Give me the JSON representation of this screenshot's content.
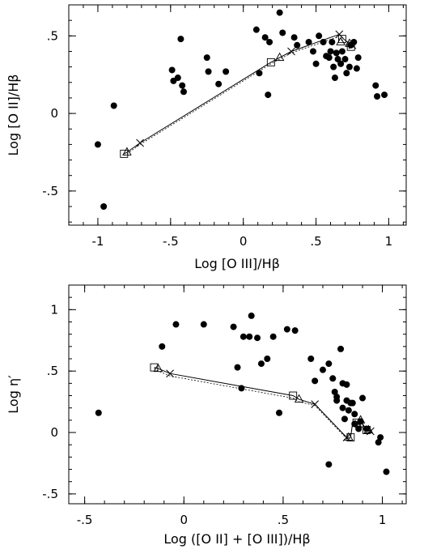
{
  "chart_data": [
    {
      "type": "scatter",
      "title": "",
      "xlabel": "Log [O III]/Hβ",
      "ylabel": "Log [O II]/Hβ",
      "xlim": [
        -1.2,
        1.12
      ],
      "ylim": [
        -0.72,
        0.7
      ],
      "xticks": [
        {
          "v": -1,
          "label": "-1"
        },
        {
          "v": -0.5,
          "label": "-.5"
        },
        {
          "v": 0,
          "label": "0"
        },
        {
          "v": 0.5,
          "label": ".5"
        },
        {
          "v": 1,
          "label": "1"
        }
      ],
      "yticks": [
        {
          "v": -0.5,
          "label": "-.5"
        },
        {
          "v": 0,
          "label": "0"
        },
        {
          "v": 0.5,
          "label": ".5"
        }
      ],
      "minor_x": 0.1,
      "minor_y": 0.1,
      "points": [
        [
          -1.0,
          -0.2
        ],
        [
          -0.96,
          -0.6
        ],
        [
          -0.89,
          0.05
        ],
        [
          -0.49,
          0.28
        ],
        [
          -0.48,
          0.21
        ],
        [
          -0.45,
          0.23
        ],
        [
          -0.43,
          0.48
        ],
        [
          -0.42,
          0.18
        ],
        [
          -0.41,
          0.14
        ],
        [
          -0.25,
          0.36
        ],
        [
          -0.24,
          0.27
        ],
        [
          -0.17,
          0.19
        ],
        [
          -0.12,
          0.27
        ],
        [
          0.09,
          0.54
        ],
        [
          0.11,
          0.26
        ],
        [
          0.15,
          0.49
        ],
        [
          0.17,
          0.12
        ],
        [
          0.18,
          0.46
        ],
        [
          0.25,
          0.65
        ],
        [
          0.27,
          0.52
        ],
        [
          0.35,
          0.49
        ],
        [
          0.37,
          0.44
        ],
        [
          0.45,
          0.46
        ],
        [
          0.48,
          0.4
        ],
        [
          0.5,
          0.32
        ],
        [
          0.52,
          0.5
        ],
        [
          0.55,
          0.46
        ],
        [
          0.57,
          0.37
        ],
        [
          0.59,
          0.36
        ],
        [
          0.6,
          0.4
        ],
        [
          0.61,
          0.46
        ],
        [
          0.62,
          0.3
        ],
        [
          0.63,
          0.23
        ],
        [
          0.64,
          0.39
        ],
        [
          0.65,
          0.35
        ],
        [
          0.67,
          0.32
        ],
        [
          0.68,
          0.4
        ],
        [
          0.7,
          0.35
        ],
        [
          0.71,
          0.26
        ],
        [
          0.73,
          0.3
        ],
        [
          0.74,
          0.44
        ],
        [
          0.76,
          0.46
        ],
        [
          0.78,
          0.29
        ],
        [
          0.79,
          0.36
        ],
        [
          0.91,
          0.18
        ],
        [
          0.92,
          0.11
        ],
        [
          0.97,
          0.12
        ]
      ],
      "models": [
        {
          "style": "solid",
          "line": [
            [
              -0.82,
              -0.26
            ],
            [
              -0.8,
              -0.25
            ],
            [
              -0.71,
              -0.19
            ],
            [
              0.19,
              0.33
            ],
            [
              0.25,
              0.36
            ],
            [
              0.33,
              0.4
            ],
            [
              0.66,
              0.51
            ],
            [
              0.69,
              0.48
            ],
            [
              0.73,
              0.45
            ],
            [
              0.76,
              0.44
            ]
          ]
        },
        {
          "style": "dotted",
          "line": [
            [
              -0.82,
              -0.27
            ],
            [
              -0.8,
              -0.26
            ],
            [
              -0.71,
              -0.2
            ],
            [
              0.19,
              0.32
            ],
            [
              0.25,
              0.35
            ],
            [
              0.33,
              0.39
            ],
            [
              0.64,
              0.49
            ],
            [
              0.68,
              0.47
            ],
            [
              0.72,
              0.43
            ],
            [
              0.76,
              0.43
            ]
          ]
        }
      ],
      "markers": [
        {
          "shape": "square",
          "points": [
            [
              -0.82,
              -0.26
            ],
            [
              0.19,
              0.33
            ],
            [
              0.68,
              0.48
            ],
            [
              0.74,
              0.43
            ]
          ]
        },
        {
          "shape": "triangle",
          "points": [
            [
              -0.8,
              -0.25
            ],
            [
              0.25,
              0.36
            ],
            [
              0.67,
              0.46
            ],
            [
              0.73,
              0.45
            ]
          ]
        },
        {
          "shape": "cross",
          "points": [
            [
              -0.71,
              -0.19
            ],
            [
              0.33,
              0.4
            ],
            [
              0.66,
              0.51
            ],
            [
              0.75,
              0.44
            ]
          ]
        }
      ]
    },
    {
      "type": "scatter",
      "title": "",
      "xlabel": "Log ([O II] + [O III])/Hβ",
      "ylabel": "Log η′",
      "xlim": [
        -0.58,
        1.12
      ],
      "ylim": [
        -0.58,
        1.2
      ],
      "xticks": [
        {
          "v": -0.5,
          "label": "-.5"
        },
        {
          "v": 0,
          "label": "0"
        },
        {
          "v": 0.5,
          "label": ".5"
        },
        {
          "v": 1,
          "label": "1"
        }
      ],
      "yticks": [
        {
          "v": -0.5,
          "label": "-.5"
        },
        {
          "v": 0,
          "label": "0"
        },
        {
          "v": 0.5,
          "label": ".5"
        },
        {
          "v": 1,
          "label": "1"
        }
      ],
      "minor_x": 0.1,
      "minor_y": 0.1,
      "points": [
        [
          -0.43,
          0.16
        ],
        [
          -0.11,
          0.7
        ],
        [
          -0.04,
          0.88
        ],
        [
          0.1,
          0.88
        ],
        [
          0.25,
          0.86
        ],
        [
          0.27,
          0.53
        ],
        [
          0.29,
          0.36
        ],
        [
          0.3,
          0.78
        ],
        [
          0.33,
          0.78
        ],
        [
          0.34,
          0.95
        ],
        [
          0.37,
          0.77
        ],
        [
          0.39,
          0.56
        ],
        [
          0.42,
          0.6
        ],
        [
          0.45,
          0.78
        ],
        [
          0.48,
          0.16
        ],
        [
          0.52,
          0.84
        ],
        [
          0.56,
          0.83
        ],
        [
          0.64,
          0.6
        ],
        [
          0.66,
          0.42
        ],
        [
          0.7,
          0.51
        ],
        [
          0.73,
          -0.26
        ],
        [
          0.73,
          0.56
        ],
        [
          0.75,
          0.44
        ],
        [
          0.76,
          0.33
        ],
        [
          0.77,
          0.29
        ],
        [
          0.77,
          0.26
        ],
        [
          0.79,
          0.68
        ],
        [
          0.8,
          0.4
        ],
        [
          0.8,
          0.2
        ],
        [
          0.81,
          0.11
        ],
        [
          0.82,
          0.26
        ],
        [
          0.82,
          0.39
        ],
        [
          0.83,
          0.18
        ],
        [
          0.84,
          0.24
        ],
        [
          0.85,
          0.24
        ],
        [
          0.86,
          0.15
        ],
        [
          0.86,
          0.07
        ],
        [
          0.88,
          0.03
        ],
        [
          0.89,
          0.09
        ],
        [
          0.9,
          0.28
        ],
        [
          0.92,
          0.03
        ],
        [
          0.98,
          -0.08
        ],
        [
          0.99,
          -0.04
        ],
        [
          1.02,
          -0.32
        ]
      ],
      "models": [
        {
          "style": "solid",
          "line": [
            [
              -0.15,
              0.53
            ],
            [
              -0.13,
              0.52
            ],
            [
              -0.07,
              0.48
            ],
            [
              0.55,
              0.3
            ],
            [
              0.58,
              0.27
            ],
            [
              0.66,
              0.23
            ],
            [
              0.82,
              -0.04
            ],
            [
              0.84,
              -0.04
            ],
            [
              0.85,
              0.08
            ],
            [
              0.87,
              0.08
            ],
            [
              0.89,
              0.1
            ],
            [
              0.92,
              0.02
            ],
            [
              0.94,
              0.01
            ]
          ]
        },
        {
          "style": "dotted",
          "line": [
            [
              -0.15,
              0.52
            ],
            [
              -0.13,
              0.5
            ],
            [
              -0.07,
              0.46
            ],
            [
              0.55,
              0.28
            ],
            [
              0.58,
              0.25
            ],
            [
              0.66,
              0.22
            ],
            [
              0.82,
              -0.05
            ],
            [
              0.84,
              -0.05
            ],
            [
              0.85,
              0.07
            ],
            [
              0.87,
              0.07
            ],
            [
              0.89,
              0.09
            ],
            [
              0.92,
              0.01
            ],
            [
              0.94,
              0.0
            ]
          ]
        }
      ],
      "markers": [
        {
          "shape": "square",
          "points": [
            [
              -0.15,
              0.53
            ],
            [
              0.55,
              0.3
            ],
            [
              0.84,
              -0.04
            ],
            [
              0.87,
              0.08
            ],
            [
              0.92,
              0.02
            ]
          ]
        },
        {
          "shape": "triangle",
          "points": [
            [
              -0.13,
              0.52
            ],
            [
              0.58,
              0.27
            ],
            [
              0.83,
              -0.04
            ],
            [
              0.89,
              0.1
            ],
            [
              0.93,
              0.02
            ]
          ]
        },
        {
          "shape": "cross",
          "points": [
            [
              -0.07,
              0.48
            ],
            [
              0.66,
              0.23
            ],
            [
              0.82,
              -0.04
            ],
            [
              0.88,
              0.07
            ],
            [
              0.94,
              0.01
            ]
          ]
        }
      ]
    }
  ]
}
